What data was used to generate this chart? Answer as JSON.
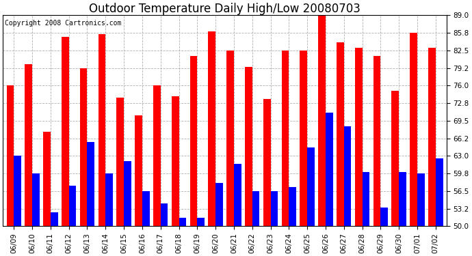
{
  "title": "Outdoor Temperature Daily High/Low 20080703",
  "copyright": "Copyright 2008 Cartronics.com",
  "dates": [
    "06/09",
    "06/10",
    "06/11",
    "06/12",
    "06/13",
    "06/14",
    "06/15",
    "06/16",
    "06/17",
    "06/18",
    "06/19",
    "06/20",
    "06/21",
    "06/22",
    "06/23",
    "06/24",
    "06/25",
    "06/26",
    "06/27",
    "06/28",
    "06/29",
    "06/30",
    "07/01",
    "07/02"
  ],
  "highs": [
    76.0,
    80.0,
    67.5,
    85.0,
    79.2,
    85.5,
    73.8,
    70.5,
    76.0,
    74.0,
    81.5,
    86.0,
    82.5,
    79.5,
    73.5,
    82.5,
    82.5,
    89.0,
    84.0,
    83.0,
    81.5,
    75.0,
    85.8,
    83.0
  ],
  "lows": [
    63.0,
    59.8,
    52.5,
    57.5,
    65.5,
    59.8,
    62.0,
    56.5,
    54.2,
    51.5,
    51.5,
    58.0,
    61.5,
    56.5,
    56.5,
    57.2,
    64.5,
    71.0,
    68.5,
    60.0,
    53.5,
    60.0,
    59.8,
    62.5
  ],
  "high_color": "#ff0000",
  "low_color": "#0000ff",
  "background_color": "#ffffff",
  "grid_color": "#b0b0b0",
  "ymin": 50.0,
  "ymax": 89.0,
  "yticks": [
    50.0,
    53.2,
    56.5,
    59.8,
    63.0,
    66.2,
    69.5,
    72.8,
    76.0,
    79.2,
    82.5,
    85.8,
    89.0
  ],
  "title_fontsize": 12,
  "tick_fontsize": 7.5,
  "copyright_fontsize": 7
}
